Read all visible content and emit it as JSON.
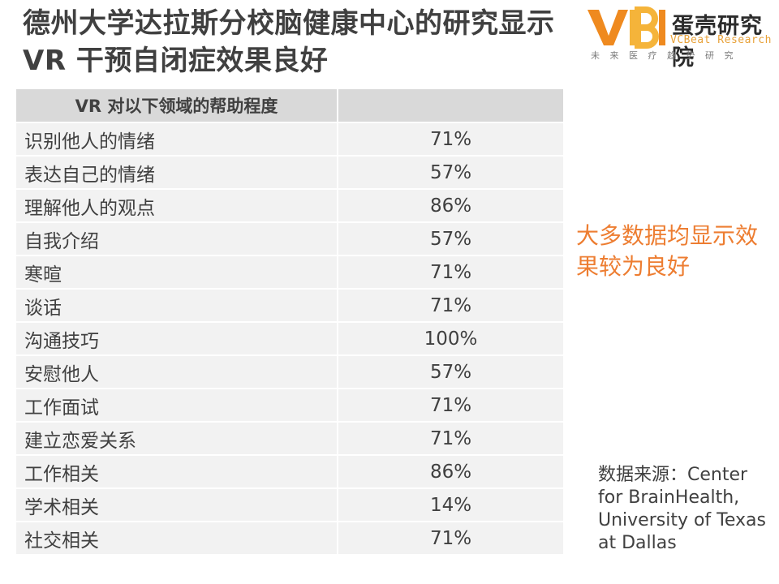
{
  "title": "德州大学达拉斯分校脑健康中心的研究显示VR 干预自闭症效果良好",
  "logo": {
    "chinese_name": "蛋壳研究院",
    "english_name": "VCBeat Research",
    "tagline": "未来医疗趋势研究",
    "colors": {
      "orange": "#ef8a1f",
      "yellow": "#f5b43a"
    }
  },
  "table": {
    "headers": [
      "VR 对以下领域的帮助程度",
      ""
    ],
    "rows": [
      {
        "area": "识别他人的情绪",
        "value": "71%"
      },
      {
        "area": "表达自己的情绪",
        "value": "57%"
      },
      {
        "area": "理解他人的观点",
        "value": "86%"
      },
      {
        "area": "自我介绍",
        "value": "57%"
      },
      {
        "area": "寒暄",
        "value": "71%"
      },
      {
        "area": "谈话",
        "value": "71%"
      },
      {
        "area": "沟通技巧",
        "value": "100%"
      },
      {
        "area": "安慰他人",
        "value": "57%"
      },
      {
        "area": "工作面试",
        "value": "71%"
      },
      {
        "area": "建立恋爱关系",
        "value": "71%"
      },
      {
        "area": "工作相关",
        "value": "86%"
      },
      {
        "area": "学术相关",
        "value": "14%"
      },
      {
        "area": "社交相关",
        "value": "71%"
      }
    ]
  },
  "callout": "大多数据均显示效果较为良好",
  "source": "数据来源：Center for BrainHealth, University of Texas at Dallas",
  "colors": {
    "header_bg": "#d9d9d9",
    "row_bg": "#f2f2f2",
    "text": "#404040",
    "accent": "#ed7d31"
  }
}
